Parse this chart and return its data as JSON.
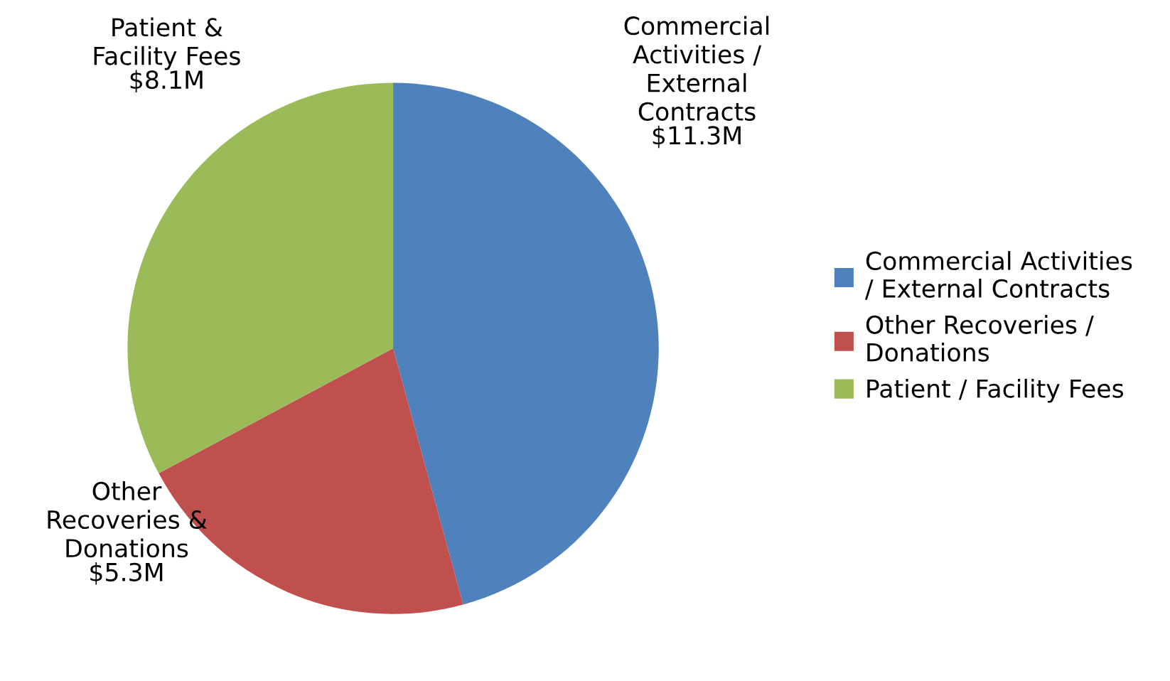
{
  "chart_data": {
    "type": "pie",
    "categories": [
      "Commercial Activities\n/ External Contracts",
      "Other Recoveries /\nDonations",
      "Patient / Facility Fees"
    ],
    "values": [
      11.3,
      5.3,
      8.1
    ],
    "colors": [
      "#4f81bd",
      "#c0504d",
      "#9bbb59"
    ],
    "value_labels": [
      "$11.3M",
      "$5.3M",
      "$8.1M"
    ],
    "annotations": [
      "Commercial\nActivities /\nExternal\nContracts",
      "Other\nRecoveries &\nDonations",
      "Patient &\nFacility Fees"
    ],
    "legend": "right"
  }
}
